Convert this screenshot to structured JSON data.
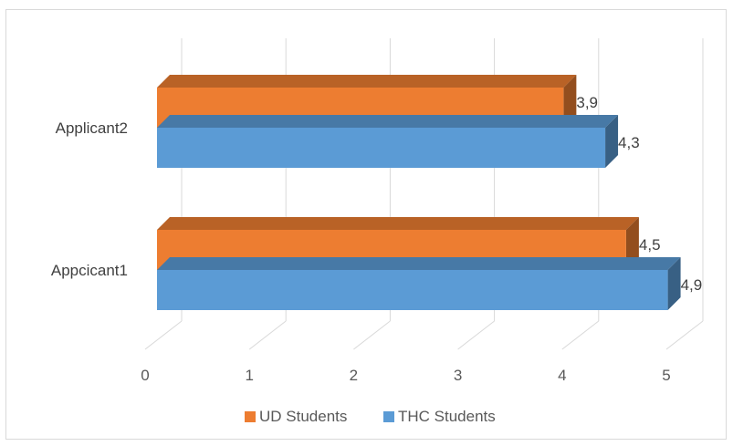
{
  "chart_data": {
    "type": "bar",
    "orientation": "horizontal",
    "style": "3d-clustered",
    "categories": [
      "Appcicant1",
      "Applicant2"
    ],
    "series": [
      {
        "name": "UD Students",
        "color": "#ED7D31",
        "values": [
          4.5,
          3.9
        ],
        "labels": [
          "4,5",
          "3,9"
        ]
      },
      {
        "name": "THC Students",
        "color": "#5B9BD5",
        "values": [
          4.9,
          4.3
        ],
        "labels": [
          "4,9",
          "4,3"
        ]
      }
    ],
    "xlim": [
      0,
      5
    ],
    "ticks": [
      "0",
      "1",
      "2",
      "3",
      "4",
      "5"
    ],
    "grid": true,
    "legend": "bottom",
    "title": "",
    "xlabel": "",
    "ylabel": ""
  }
}
